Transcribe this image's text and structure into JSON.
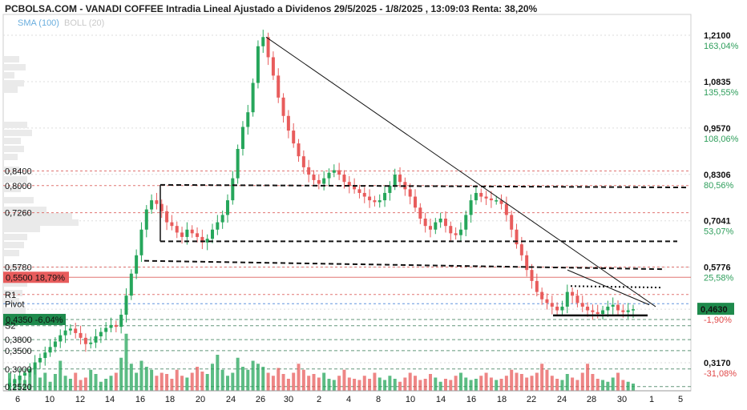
{
  "header": {
    "title": "PCBOLSA.COM - VANADI COFFEE Intradia Lineal Ajustado a Dividenos 29/5/2025 - 1/8/2025 , 13:09:03 Renta: 38,20%",
    "indicator_sma": "SMA (100)",
    "indicator_boll": "BOLL (20)"
  },
  "colors": {
    "up": "#26a65b",
    "down": "#e85c5c",
    "support_red": "#d9534f",
    "pivot_blue": "#3a7bd5",
    "pct_green": "#2e9e5b",
    "pct_red": "#e04848",
    "grid": "#dddddd"
  },
  "chart_data": {
    "type": "candlestick",
    "title": "PCBOLSA.COM - VANADI COFFEE Intradia Lineal Ajustado a Dividenos 29/5/2025 - 1/8/2025 , 13:09:03 Renta: 38,20%",
    "x_tick_labels": [
      "6",
      "10",
      "12",
      "14",
      "16",
      "18",
      "20",
      "24",
      "26",
      "30",
      "2",
      "4",
      "8",
      "10",
      "14",
      "16",
      "18",
      "22",
      "24",
      "28",
      "30",
      "1",
      "5",
      "7"
    ],
    "y_range": [
      0.242,
      1.24
    ],
    "right_axis": [
      {
        "value": "1,2100",
        "pct": "163,04%"
      },
      {
        "value": "1,0835",
        "pct": "135,55%"
      },
      {
        "value": "0,9570",
        "pct": "108,06%"
      },
      {
        "value": "0,8306",
        "pct": "80,56%"
      },
      {
        "value": "0,7041",
        "pct": "53,07%"
      },
      {
        "value": "0,5776",
        "pct": "25,58%"
      },
      {
        "value": "0,4630",
        "pct": "-1,90%"
      },
      {
        "value": "0,3170",
        "pct": "-31,08%"
      }
    ],
    "left_levels": [
      {
        "label": "0,8400",
        "value": 0.84,
        "style": "red-dash"
      },
      {
        "label": "0,8000",
        "value": 0.8,
        "style": "red-dash"
      },
      {
        "label": "0,7260",
        "value": 0.726,
        "style": "red-dash"
      },
      {
        "label": "0,5780",
        "value": 0.578,
        "style": "red-dash"
      },
      {
        "label": "0,5500  18,79%",
        "value": 0.55,
        "style": "red-solid-box"
      },
      {
        "label": "R1",
        "value": 0.503,
        "style": "red-label"
      },
      {
        "label": "Pivot",
        "value": 0.478,
        "style": "blue-label"
      },
      {
        "label": "0,4350  -6,04%",
        "value": 0.435,
        "style": "green-box"
      },
      {
        "label": "S2",
        "value": 0.418,
        "style": "gray-label"
      },
      {
        "label": "0,3800",
        "value": 0.38,
        "style": "plain"
      },
      {
        "label": "0,3500",
        "value": 0.35,
        "style": "plain"
      },
      {
        "label": "0,3000",
        "value": 0.3,
        "style": "plain"
      },
      {
        "label": "0,2520",
        "value": 0.252,
        "style": "plain"
      }
    ],
    "close_series": [
      0.262,
      0.27,
      0.282,
      0.29,
      0.3,
      0.318,
      0.33,
      0.345,
      0.36,
      0.375,
      0.392,
      0.405,
      0.41,
      0.398,
      0.385,
      0.368,
      0.372,
      0.389,
      0.401,
      0.412,
      0.42,
      0.415,
      0.448,
      0.5,
      0.56,
      0.61,
      0.68,
      0.735,
      0.76,
      0.75,
      0.73,
      0.7,
      0.69,
      0.672,
      0.66,
      0.68,
      0.67,
      0.66,
      0.645,
      0.655,
      0.68,
      0.7,
      0.72,
      0.76,
      0.82,
      0.9,
      0.96,
      1.0,
      1.08,
      1.18,
      1.205,
      1.15,
      1.1,
      1.04,
      0.99,
      0.95,
      0.915,
      0.88,
      0.85,
      0.83,
      0.815,
      0.805,
      0.82,
      0.835,
      0.842,
      0.83,
      0.81,
      0.8,
      0.79,
      0.78,
      0.77,
      0.76,
      0.755,
      0.76,
      0.78,
      0.8,
      0.83,
      0.81,
      0.79,
      0.77,
      0.74,
      0.71,
      0.69,
      0.68,
      0.7,
      0.71,
      0.69,
      0.67,
      0.665,
      0.68,
      0.72,
      0.76,
      0.78,
      0.77,
      0.765,
      0.76,
      0.76,
      0.75,
      0.72,
      0.68,
      0.64,
      0.61,
      0.57,
      0.54,
      0.51,
      0.49,
      0.48,
      0.47,
      0.46,
      0.47,
      0.51,
      0.5,
      0.48,
      0.47,
      0.46,
      0.455,
      0.45,
      0.46,
      0.47,
      0.475,
      0.46,
      0.455,
      0.46,
      0.463
    ],
    "volume_series": [
      0.3,
      0.2,
      0.25,
      0.18,
      0.35,
      0.4,
      0.22,
      0.3,
      0.15,
      0.28,
      0.5,
      0.25,
      0.2,
      0.3,
      0.18,
      0.22,
      0.35,
      0.28,
      0.15,
      0.2,
      0.25,
      0.3,
      0.55,
      0.95,
      0.45,
      0.3,
      0.5,
      0.4,
      0.35,
      0.25,
      0.3,
      0.28,
      0.2,
      0.35,
      0.25,
      0.22,
      0.3,
      0.4,
      0.32,
      0.28,
      0.45,
      0.6,
      0.35,
      0.25,
      0.3,
      0.55,
      0.4,
      0.35,
      0.5,
      0.45,
      0.4,
      0.3,
      0.25,
      0.38,
      0.28,
      0.2,
      0.3,
      0.45,
      0.35,
      0.25,
      0.28,
      0.22,
      0.3,
      0.2,
      0.18,
      0.25,
      0.35,
      0.22,
      0.2,
      0.18,
      0.25,
      0.2,
      0.3,
      0.22,
      0.18,
      0.25,
      0.2,
      0.15,
      0.22,
      0.3,
      0.25,
      0.18,
      0.2,
      0.28,
      0.22,
      0.15,
      0.2,
      0.18,
      0.25,
      0.3,
      0.22,
      0.18,
      0.2,
      0.25,
      0.3,
      0.22,
      0.18,
      0.2,
      0.25,
      0.35,
      0.3,
      0.28,
      0.22,
      0.25,
      0.3,
      0.45,
      0.35,
      0.25,
      0.2,
      0.18,
      0.28,
      0.22,
      0.18,
      0.3,
      0.45,
      0.28,
      0.2,
      0.18,
      0.15,
      0.22,
      0.3,
      0.18,
      0.15,
      0.12
    ],
    "legend": "none",
    "grid": "horizontal dashed"
  }
}
